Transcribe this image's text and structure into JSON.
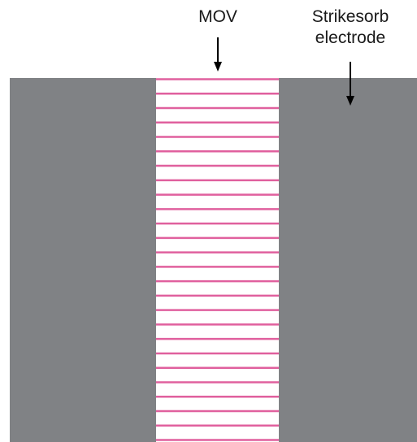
{
  "labels": {
    "mov": "MOV",
    "electrode_line1": "Strikesorb",
    "electrode_line2": "electrode"
  },
  "stripe_count": 26,
  "colors": {
    "background": "#ffffff",
    "electrode": "#808285",
    "stripe": "#e0609e",
    "text": "#1a1a1a"
  }
}
